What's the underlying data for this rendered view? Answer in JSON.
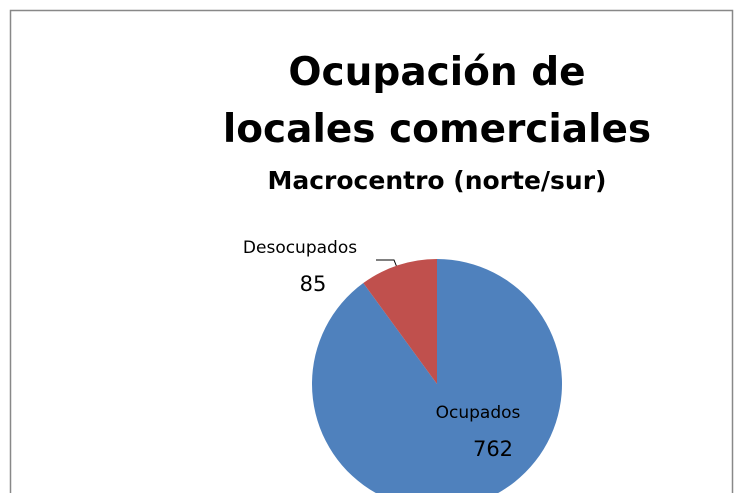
{
  "chart_data": {
    "type": "pie",
    "title": "Ocupación de locales comerciales",
    "subtitle": "Macrocentro (norte/sur)",
    "categories": [
      "Ocupados",
      "Desocupados"
    ],
    "values": [
      762,
      85
    ],
    "colors": [
      "#4f81bd",
      "#c0504d"
    ]
  }
}
